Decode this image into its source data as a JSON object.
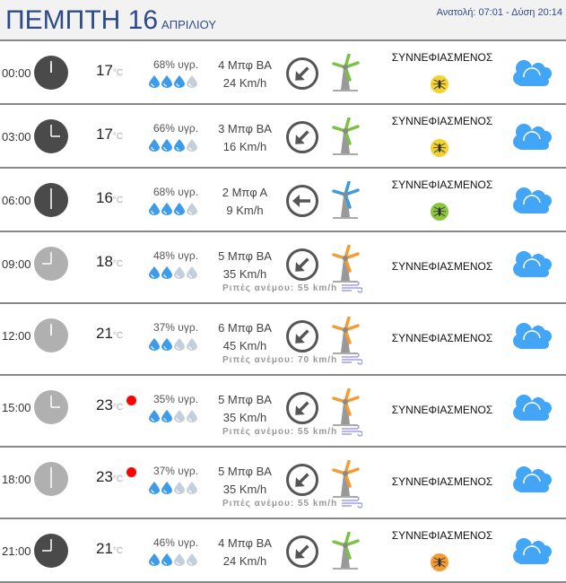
{
  "header": {
    "day": "ΠΕΜΠΤΗ 16",
    "month": "ΑΠΡΙΛΙΟΥ",
    "sun": "Ανατολή: 07:01  - Δύση 20:14"
  },
  "colors": {
    "accent": "#2e4a8c",
    "drop_on": "#3d9be9",
    "drop_off": "#c5cfd8",
    "cloud": "#42a5f5",
    "night_clock": "#4a4a4a",
    "day_clock": "#b0b0b0",
    "warm_dot": "#ff0000"
  },
  "rows": [
    {
      "time": "00:00",
      "hour": 0,
      "night": true,
      "temp": "17",
      "unit": "°C",
      "hot": false,
      "humidity": "68% υγρ.",
      "drops": 3,
      "beaufort": "4 Μπφ ΒΑ",
      "speed": "24 Km/h",
      "dir": "NE",
      "turbine": "#7cc242",
      "condition": "ΣΥΝΝΕΦΙΑΣΜΕΝΟΣ",
      "mosquito": "#f2d22e",
      "gust": null
    },
    {
      "time": "03:00",
      "hour": 3,
      "night": true,
      "temp": "17",
      "unit": "°C",
      "hot": false,
      "humidity": "66% υγρ.",
      "drops": 3,
      "beaufort": "3 Μπφ ΒΑ",
      "speed": "16 Km/h",
      "dir": "NE",
      "turbine": "#7cc242",
      "condition": "ΣΥΝΝΕΦΙΑΣΜΕΝΟΣ",
      "mosquito": "#f2d22e",
      "gust": null
    },
    {
      "time": "06:00",
      "hour": 6,
      "night": true,
      "temp": "16",
      "unit": "°C",
      "hot": false,
      "humidity": "68% υγρ.",
      "drops": 3,
      "beaufort": "2 Μπφ Α",
      "speed": "9 Km/h",
      "dir": "E",
      "turbine": "#3d9bd6",
      "condition": "ΣΥΝΝΕΦΙΑΣΜΕΝΟΣ",
      "mosquito": "#8cc63f",
      "gust": null
    },
    {
      "time": "09:00",
      "hour": 9,
      "night": false,
      "temp": "18",
      "unit": "°C",
      "hot": false,
      "humidity": "48% υγρ.",
      "drops": 2,
      "beaufort": "5 Μπφ ΒΑ",
      "speed": "35 Km/h",
      "dir": "NE",
      "turbine": "#f39c33",
      "condition": "ΣΥΝΝΕΦΙΑΣΜΕΝΟΣ",
      "mosquito": null,
      "gust": "Ριπές ανέμου: 55 km/h"
    },
    {
      "time": "12:00",
      "hour": 12,
      "night": false,
      "temp": "21",
      "unit": "°C",
      "hot": false,
      "humidity": "37% υγρ.",
      "drops": 2,
      "beaufort": "6 Μπφ ΒΑ",
      "speed": "45 Km/h",
      "dir": "NE",
      "turbine": "#f39c33",
      "condition": "ΣΥΝΝΕΦΙΑΣΜΕΝΟΣ",
      "mosquito": null,
      "gust": "Ριπές ανέμου: 70 km/h"
    },
    {
      "time": "15:00",
      "hour": 15,
      "night": false,
      "temp": "23",
      "unit": "°C",
      "hot": true,
      "humidity": "35% υγρ.",
      "drops": 2,
      "beaufort": "5 Μπφ ΒΑ",
      "speed": "35 Km/h",
      "dir": "NE",
      "turbine": "#f39c33",
      "condition": "ΣΥΝΝΕΦΙΑΣΜΕΝΟΣ",
      "mosquito": null,
      "gust": "Ριπές ανέμου: 55 km/h"
    },
    {
      "time": "18:00",
      "hour": 18,
      "night": false,
      "temp": "23",
      "unit": "°C",
      "hot": true,
      "humidity": "37% υγρ.",
      "drops": 2,
      "beaufort": "5 Μπφ ΒΑ",
      "speed": "35 Km/h",
      "dir": "NE",
      "turbine": "#f39c33",
      "condition": "ΣΥΝΝΕΦΙΑΣΜΕΝΟΣ",
      "mosquito": null,
      "gust": "Ριπές ανέμου: 55 km/h"
    },
    {
      "time": "21:00",
      "hour": 21,
      "night": true,
      "temp": "21",
      "unit": "°C",
      "hot": false,
      "humidity": "46% υγρ.",
      "drops": 2,
      "beaufort": "4 Μπφ ΒΑ",
      "speed": "24 Km/h",
      "dir": "NE",
      "turbine": "#7cc242",
      "condition": "ΣΥΝΝΕΦΙΑΣΜΕΝΟΣ",
      "mosquito": "#f39c33",
      "gust": null
    }
  ]
}
